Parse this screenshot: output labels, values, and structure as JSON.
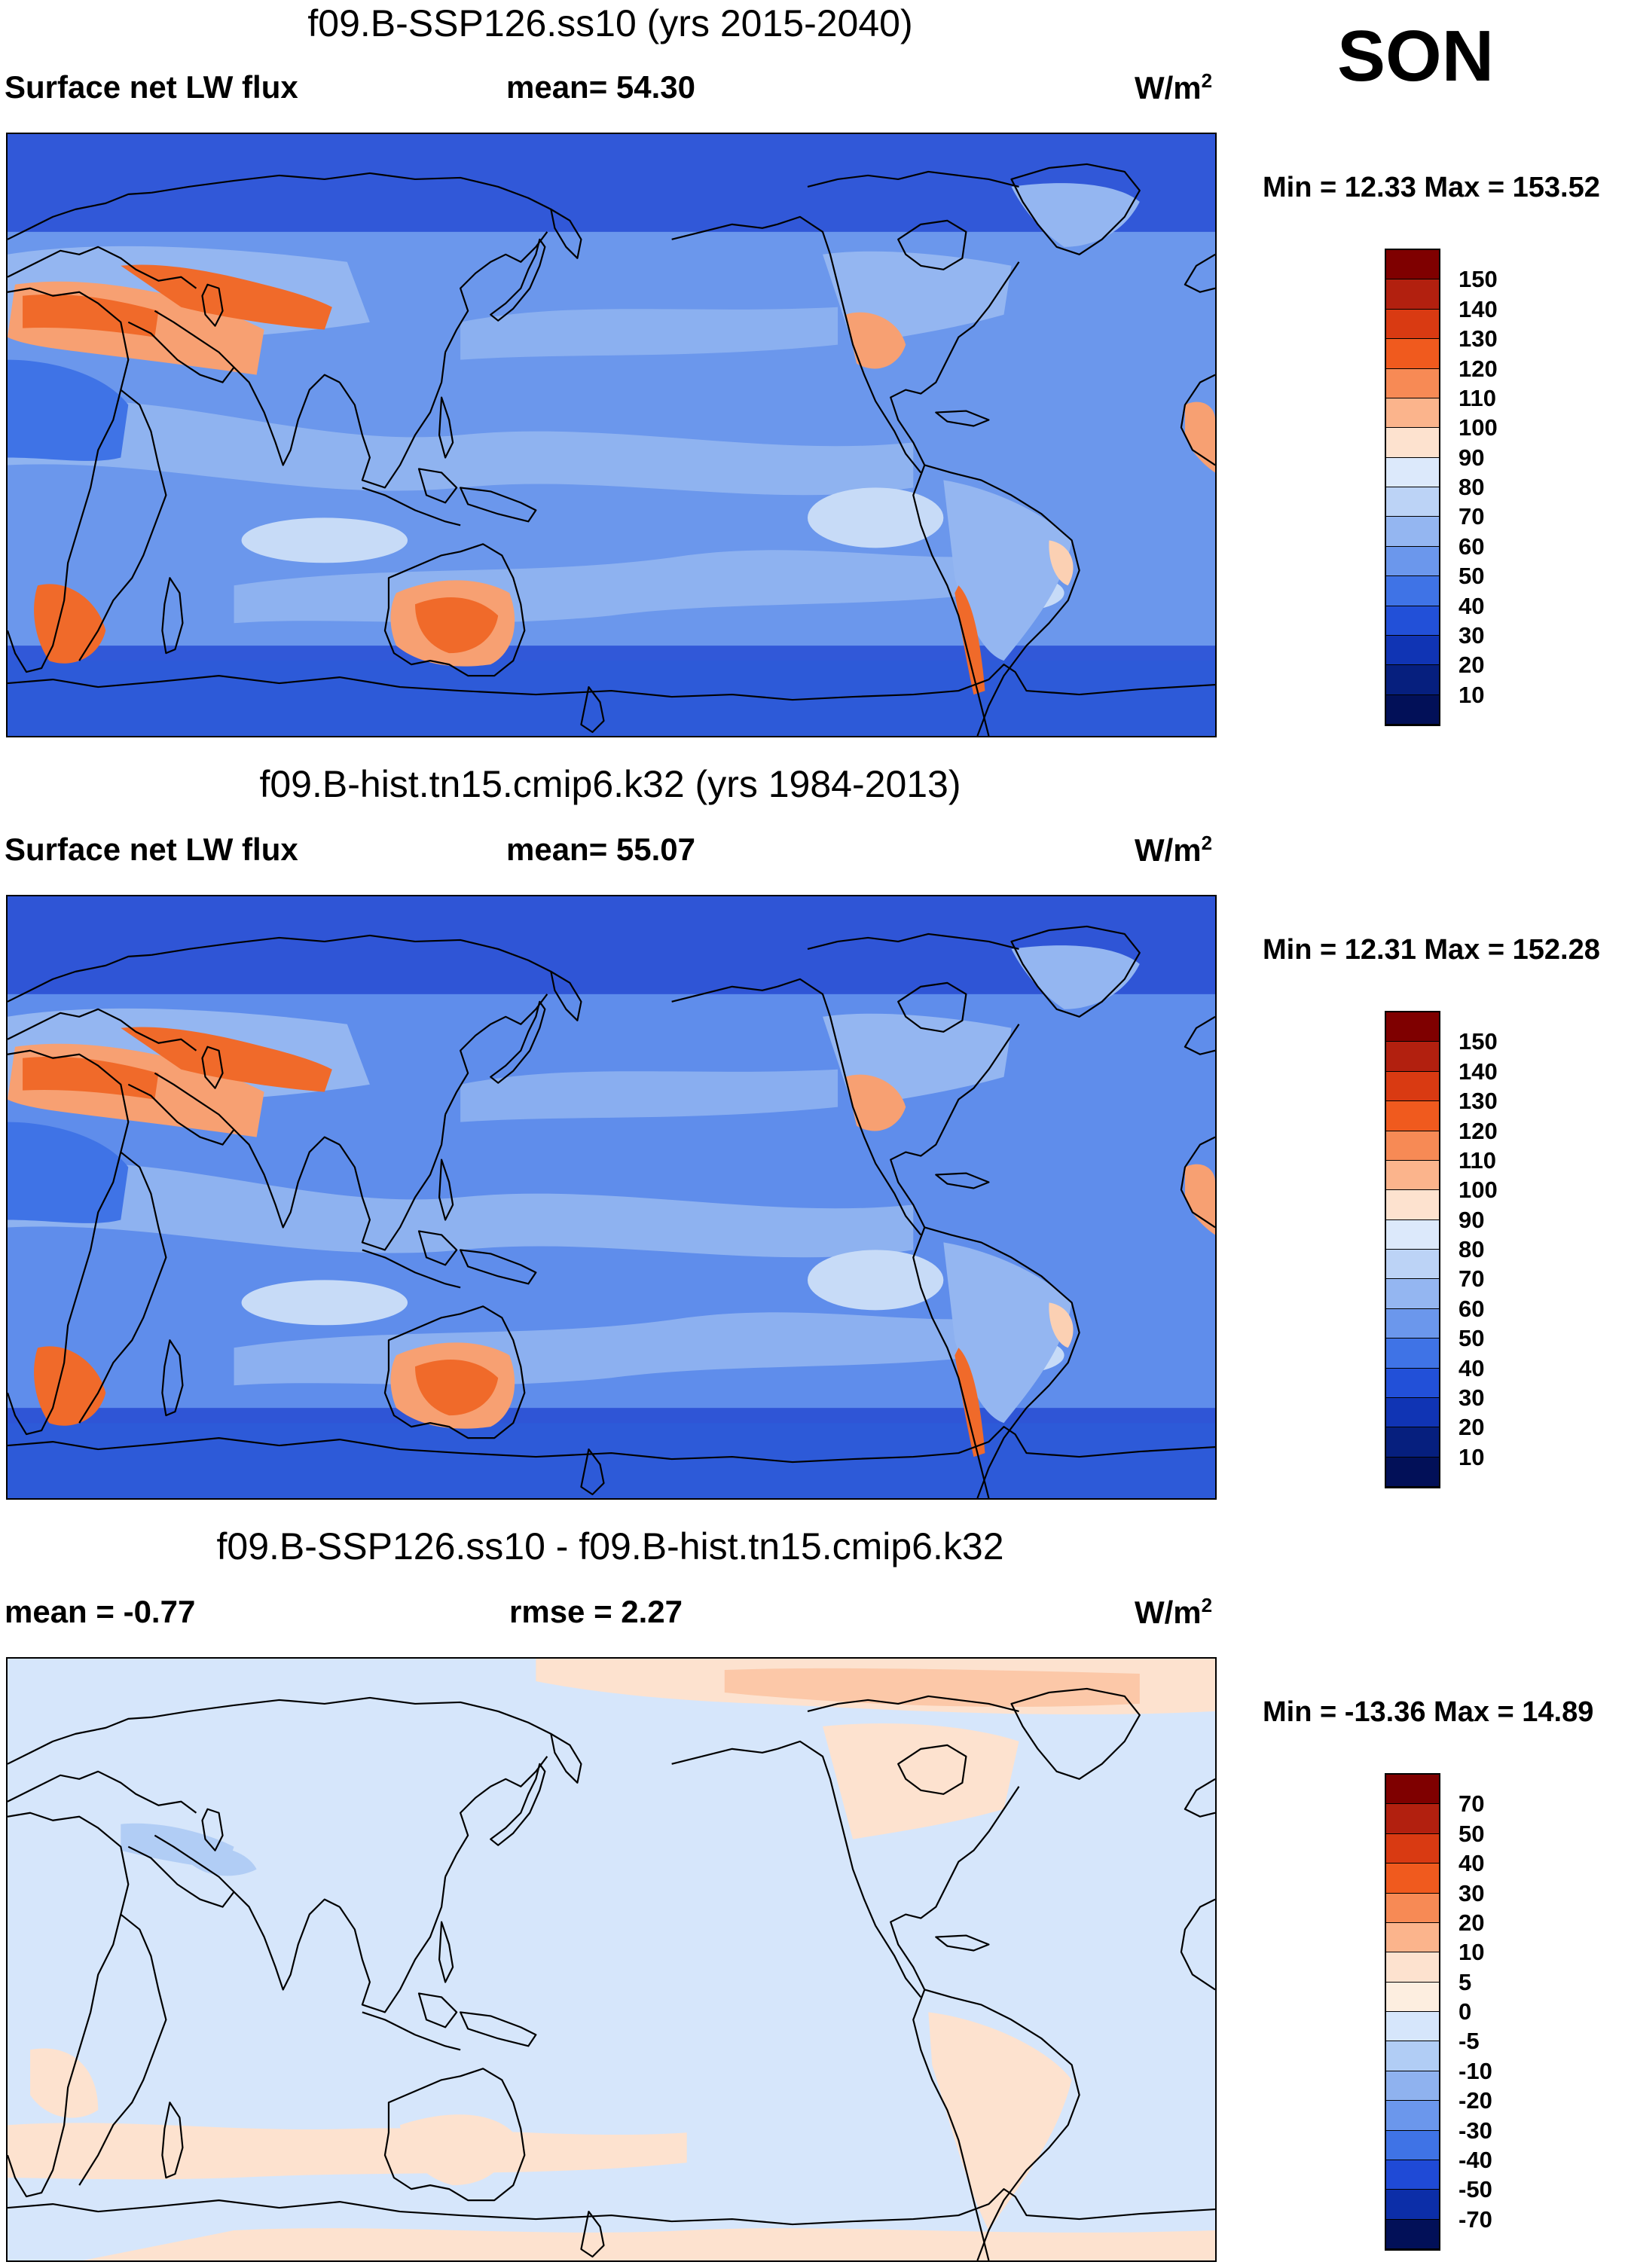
{
  "season": "SON",
  "panels": [
    {
      "title": "f09.B-SSP126.ss10 (yrs 2015-2040)",
      "left_label": "Surface net LW flux",
      "center_label": "mean=  54.30",
      "units_base": "W/m",
      "units_exp": "2",
      "minmax": "Min =  12.33 Max = 153.52",
      "colorbar": {
        "labels": [
          "150",
          "140",
          "130",
          "120",
          "110",
          "100",
          "90",
          "80",
          "70",
          "60",
          "50",
          "40",
          "30",
          "20",
          "10"
        ],
        "colors": [
          "#7f0000",
          "#b2200f",
          "#d93a12",
          "#f05a1e",
          "#f78a55",
          "#fbb48c",
          "#fde2cf",
          "#dce9fb",
          "#bcd3f6",
          "#94b6f1",
          "#6b97ec",
          "#3f73e6",
          "#2250d8",
          "#1034b4",
          "#061f7e",
          "#021058"
        ]
      },
      "field_colors": {
        "ocean_high_lat": "#3158d8",
        "ocean_mid": "#6b97ec",
        "ocean_band": "#94b6f1",
        "ocean_pale": "#c7dbf7",
        "land_cold": "#3f73e6",
        "land_mid": "#94b6f1",
        "desert_hot": "#f06a2a",
        "desert_warm": "#f7a072",
        "desert_pale": "#fbd0b3",
        "antarctic": "#2d5ad8"
      }
    },
    {
      "title": "f09.B-hist.tn15.cmip6.k32 (yrs 1984-2013)",
      "left_label": "Surface net LW flux",
      "center_label": "mean=  55.07",
      "units_base": "W/m",
      "units_exp": "2",
      "minmax": "Min =  12.31 Max = 152.28",
      "colorbar": {
        "labels": [
          "150",
          "140",
          "130",
          "120",
          "110",
          "100",
          "90",
          "80",
          "70",
          "60",
          "50",
          "40",
          "30",
          "20",
          "10"
        ],
        "colors": [
          "#7f0000",
          "#b2200f",
          "#d93a12",
          "#f05a1e",
          "#f78a55",
          "#fbb48c",
          "#fde2cf",
          "#dce9fb",
          "#bcd3f6",
          "#94b6f1",
          "#6b97ec",
          "#3f73e6",
          "#2250d8",
          "#1034b4",
          "#061f7e",
          "#021058"
        ]
      },
      "field_colors": {
        "ocean_high_lat": "#2f55d6",
        "ocean_mid": "#5f8deb",
        "ocean_band": "#94b6f1",
        "ocean_pale": "#c7dbf7",
        "land_cold": "#3f73e6",
        "land_mid": "#94b6f1",
        "desert_hot": "#f06a2a",
        "desert_warm": "#f7a072",
        "desert_pale": "#fbd0b3",
        "antarctic": "#2d5ad8"
      }
    },
    {
      "title": "f09.B-SSP126.ss10 - f09.B-hist.tn15.cmip6.k32",
      "left_label": "mean =  -0.77",
      "center_label": "rmse =    2.27",
      "units_base": "W/m",
      "units_exp": "2",
      "minmax": "Min = -13.36 Max =  14.89",
      "colorbar": {
        "labels": [
          "70",
          "50",
          "40",
          "30",
          "20",
          "10",
          "5",
          "0",
          "-5",
          "-10",
          "-20",
          "-30",
          "-40",
          "-50",
          "-70"
        ],
        "colors": [
          "#7f0000",
          "#b2200f",
          "#d93a12",
          "#f05a1e",
          "#f78a55",
          "#fbb48c",
          "#fde2cf",
          "#fdeee0",
          "#d6e6fb",
          "#b1cdf5",
          "#8fb2ef",
          "#6b97ec",
          "#3f73e6",
          "#1f4ad6",
          "#0c2ea8",
          "#021058"
        ]
      },
      "field_colors": {
        "background": "#d6e6fb",
        "positive": "#fde2cf",
        "positive_strong": "#fcc8a8",
        "negative": "#b1cdf5"
      }
    }
  ]
}
